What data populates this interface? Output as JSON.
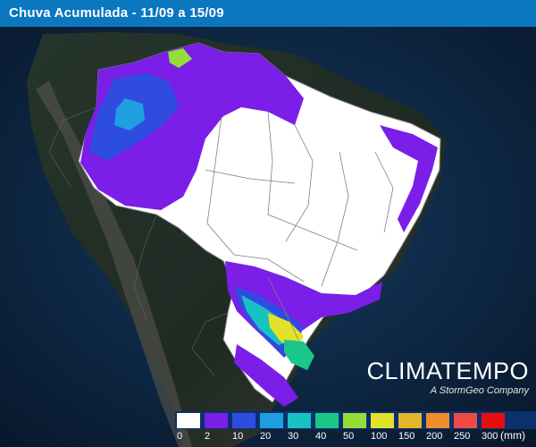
{
  "header": {
    "title": "Chuva Acumulada - 11/09 a 15/09"
  },
  "brand": {
    "name": "CLIMATEMPO",
    "subtitle": "A StormGeo Company"
  },
  "legend": {
    "units": "(mm)",
    "bins": [
      {
        "label": "0",
        "color": "#ffffff"
      },
      {
        "label": "2",
        "color": "#7a1ee8"
      },
      {
        "label": "10",
        "color": "#2e4de0"
      },
      {
        "label": "20",
        "color": "#1f9fe0"
      },
      {
        "label": "30",
        "color": "#17c2c0"
      },
      {
        "label": "40",
        "color": "#1ac88a"
      },
      {
        "label": "50",
        "color": "#95de3a"
      },
      {
        "label": "100",
        "color": "#e2e22a"
      },
      {
        "label": "150",
        "color": "#e2b52a"
      },
      {
        "label": "200",
        "color": "#ee8d2a"
      },
      {
        "label": "250",
        "color": "#f04a44"
      },
      {
        "label": "300",
        "color": "#e60f10"
      }
    ]
  },
  "colors": {
    "ocean": "#0b1c31",
    "land": "#1f2d24",
    "title_bar": "#0a77bf",
    "rain_none": "#ffffff",
    "rain_purple": "#7a1ee8",
    "rain_blue": "#2e4de0",
    "rain_cyan": "#1f9fe0",
    "rain_green": "#1ac88a",
    "rain_yellow": "#e2e22a"
  }
}
